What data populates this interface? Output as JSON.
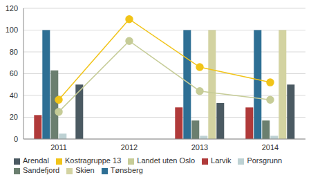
{
  "chart_data": {
    "type": "bar",
    "categories": [
      "2011",
      "2012",
      "2013",
      "2014"
    ],
    "series": [
      {
        "name": "Larvik",
        "type": "bar",
        "color": "#b03a3a",
        "values": [
          22,
          null,
          29,
          29
        ]
      },
      {
        "name": "Tønsberg",
        "type": "bar",
        "color": "#2e6f94",
        "values": [
          100,
          null,
          100,
          100
        ]
      },
      {
        "name": "Sandefjord",
        "type": "bar",
        "color": "#6b7f6f",
        "values": [
          63,
          null,
          17,
          17
        ]
      },
      {
        "name": "Porsgrunn",
        "type": "bar",
        "color": "#bdd1d3",
        "values": [
          5,
          null,
          3,
          3
        ]
      },
      {
        "name": "Skien",
        "type": "bar",
        "color": "#d3d3a1",
        "values": [
          null,
          null,
          100,
          100
        ]
      },
      {
        "name": "Arendal",
        "type": "bar",
        "color": "#4b5a62",
        "values": [
          50,
          null,
          33,
          50
        ]
      },
      {
        "name": "Landet uten Oslo",
        "type": "line",
        "color": "#c6cc97",
        "marker": "circle",
        "values": [
          25,
          90,
          44,
          36
        ]
      },
      {
        "name": "Kostragruppe 13",
        "type": "line",
        "color": "#f1c419",
        "marker": "circle",
        "values": [
          36,
          110,
          66,
          52
        ]
      }
    ],
    "ylim": [
      0,
      120
    ],
    "yticks": [
      0,
      20,
      40,
      60,
      80,
      100,
      120
    ],
    "grid": true,
    "legend": "bottom"
  }
}
